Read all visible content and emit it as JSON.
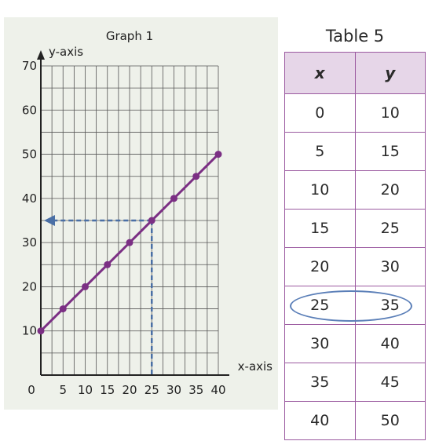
{
  "chart_data": [
    {
      "type": "line",
      "title": "Graph 1",
      "xlabel": "x-axis",
      "ylabel": "y-axis",
      "x": [
        0,
        5,
        10,
        15,
        20,
        25,
        30,
        35,
        40
      ],
      "series": [
        {
          "values": [
            10,
            15,
            20,
            25,
            30,
            35,
            40,
            45,
            50
          ],
          "color": "#7b2f84"
        }
      ],
      "xlim": [
        0,
        40
      ],
      "ylim": [
        0,
        70
      ],
      "xticks": [
        "0",
        "5",
        "10",
        "15",
        "20",
        "25",
        "30",
        "35",
        "40"
      ],
      "yticks": [
        "10",
        "20",
        "30",
        "40",
        "50",
        "60",
        "70"
      ],
      "grid": true,
      "annotation": {
        "x": 25,
        "y": 35,
        "style": "dashed-guides",
        "color": "#4a6fa5"
      }
    },
    {
      "type": "table",
      "title": "Table 5",
      "columns": [
        "x",
        "y"
      ],
      "rows": [
        [
          "0",
          "10"
        ],
        [
          "5",
          "15"
        ],
        [
          "10",
          "20"
        ],
        [
          "15",
          "25"
        ],
        [
          "20",
          "30"
        ],
        [
          "25",
          "35"
        ],
        [
          "30",
          "40"
        ],
        [
          "35",
          "45"
        ],
        [
          "40",
          "50"
        ]
      ],
      "highlighted_row": 5
    }
  ]
}
